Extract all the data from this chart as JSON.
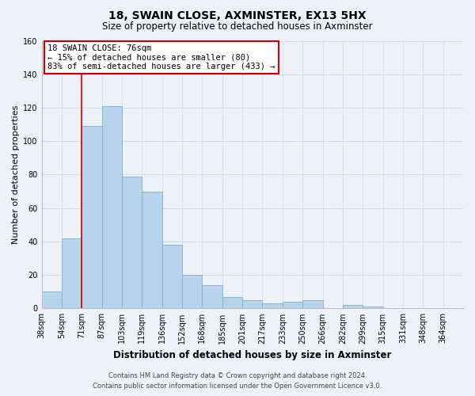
{
  "title": "18, SWAIN CLOSE, AXMINSTER, EX13 5HX",
  "subtitle": "Size of property relative to detached houses in Axminster",
  "xlabel": "Distribution of detached houses by size in Axminster",
  "ylabel": "Number of detached properties",
  "bar_values": [
    10,
    42,
    109,
    121,
    79,
    70,
    38,
    20,
    14,
    7,
    5,
    3,
    4,
    5,
    0,
    2,
    1,
    0,
    0,
    0,
    0
  ],
  "bar_labels": [
    "38sqm",
    "54sqm",
    "71sqm",
    "87sqm",
    "103sqm",
    "119sqm",
    "136sqm",
    "152sqm",
    "168sqm",
    "185sqm",
    "201sqm",
    "217sqm",
    "233sqm",
    "250sqm",
    "266sqm",
    "282sqm",
    "299sqm",
    "315sqm",
    "331sqm",
    "348sqm",
    "364sqm"
  ],
  "bar_color": "#b8d4ec",
  "bar_edge_color": "#7aafd4",
  "vline_color": "#cc0000",
  "vline_x_index": 2,
  "ylim": [
    0,
    160
  ],
  "yticks": [
    0,
    20,
    40,
    60,
    80,
    100,
    120,
    140,
    160
  ],
  "annotation_title": "18 SWAIN CLOSE: 76sqm",
  "annotation_line1": "← 15% of detached houses are smaller (80)",
  "annotation_line2": "83% of semi-detached houses are larger (433) →",
  "annotation_box_color": "#ffffff",
  "annotation_box_edge": "#cc0000",
  "footer1": "Contains HM Land Registry data © Crown copyright and database right 2024.",
  "footer2": "Contains public sector information licensed under the Open Government Licence v3.0.",
  "grid_color": "#c8d8ec",
  "background_color": "#eef2f8",
  "title_fontsize": 10,
  "subtitle_fontsize": 8.5,
  "ylabel_fontsize": 8,
  "xlabel_fontsize": 8.5,
  "tick_fontsize": 7,
  "ann_fontsize": 7.5,
  "footer_fontsize": 6
}
